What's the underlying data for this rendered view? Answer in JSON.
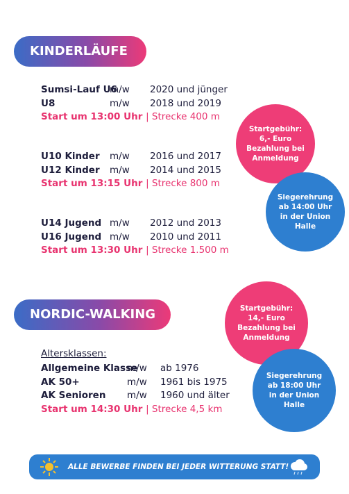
{
  "sections": [
    {
      "title": "KINDERLÄUFE",
      "groups": [
        {
          "rows": [
            [
              "Sumsi-Lauf U6",
              "m/w",
              "2020 und jünger"
            ],
            [
              "U8",
              "m/w",
              "2018 und 2019"
            ]
          ],
          "start": "Start um 13:00 Uhr",
          "route": "| Strecke 400 m"
        },
        {
          "rows": [
            [
              "U10 Kinder",
              "m/w",
              "2016 und 2017"
            ],
            [
              "U12 Kinder",
              "m/w",
              "2014 und 2015"
            ]
          ],
          "start": "Start um 13:15 Uhr",
          "route": "| Strecke 800 m"
        },
        {
          "rows": [
            [
              "U14 Jugend",
              "m/w",
              "2012 und 2013"
            ],
            [
              "U16 Jugend",
              "m/w",
              "2010 und 2011"
            ]
          ],
          "start": "Start um 13:30 Uhr",
          "route": "| Strecke 1.500 m"
        }
      ],
      "fee": [
        "Startgebühr:",
        "6,- Euro",
        "Bezahlung bei",
        "Anmeldung"
      ],
      "ceremony": [
        "Siegerehrung",
        "ab 14:00 Uhr",
        "in der Union",
        "Halle"
      ]
    },
    {
      "title": "NORDIC-WALKING",
      "label": "Altersklassen:",
      "groups": [
        {
          "rows": [
            [
              "Allgemeine Klasse",
              "m/w",
              "ab 1976"
            ],
            [
              "AK 50+",
              "m/w",
              "1961 bis 1975"
            ],
            [
              "AK Senioren",
              "m/w",
              "1960 und älter"
            ]
          ],
          "start": "Start um 14:30 Uhr",
          "route": "| Strecke 4,5 km"
        }
      ],
      "fee": [
        "Startgebühr:",
        "14,- Euro",
        "Bezahlung bei",
        "Anmeldung"
      ],
      "ceremony": [
        "Siegerehrung",
        "ab 18:00 Uhr",
        "in der Union",
        "Halle"
      ]
    }
  ],
  "footer": "ALLE BEWERBE FINDEN BEI JEDER WITTERUNG STATT!"
}
